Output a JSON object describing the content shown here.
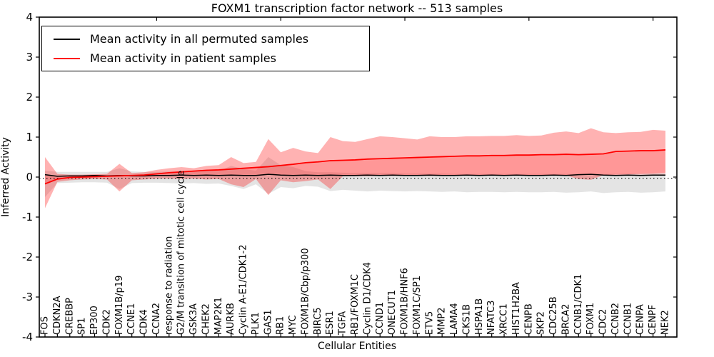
{
  "chart_data": {
    "type": "line",
    "title": "FOXM1 transcription factor network -- 513 samples",
    "xlabel": "Cellular Entities",
    "ylabel": "Inferred Activity",
    "ylim": [
      -4,
      4
    ],
    "yticks": [
      4,
      3,
      2,
      1,
      0,
      -1,
      -2,
      -3,
      -4
    ],
    "grid": false,
    "legend_position": "upper left",
    "colors": {
      "patient_line": "#ff0000",
      "permuted_line": "#000000",
      "patient_band": "rgba(255,0,0,0.30)",
      "permuted_band": "rgba(130,130,130,0.22)",
      "diff_fill": "rgba(255,0,0,0.15)",
      "baseline": "#000000",
      "frame": "#000000"
    },
    "categories": [
      "FOS",
      "CDKN2A",
      "CREBBP",
      "SP1",
      "EP300",
      "CDK2",
      "FOXM1B/p19",
      "CCNE1",
      "CDK4",
      "CCNA2",
      "response to radiation",
      "G2/M transition of mitotic cell cycle",
      "GSK3A",
      "CHEK2",
      "MAP2K1",
      "AURKB",
      "Cyclin A-E1/CDK1-2",
      "PLK1",
      "GAS1",
      "RB1",
      "MYC",
      "FOXM1B/Cbp/p300",
      "BIRC5",
      "ESR1",
      "TGFA",
      "RB1/FOXM1C",
      "Cyclin D1/CDK4",
      "CCND1",
      "ONECUT1",
      "FOXM1B/HNF6",
      "FOXM1C/SP1",
      "ETV5",
      "MMP2",
      "LAMA4",
      "CKS1B",
      "HSPA1B",
      "NFATC3",
      "XRCC1",
      "HIST1H2BA",
      "CENPB",
      "SKP2",
      "CDC25B",
      "BRCA2",
      "CCNB1/CDK1",
      "FOXM1",
      "CDC2",
      "CCNB2",
      "CCNB1",
      "CENPA",
      "CENPF",
      "NEK2"
    ],
    "series": [
      {
        "name": "Mean activity in all permuted samples",
        "color": "#000000",
        "values": [
          0.06,
          0.02,
          0.03,
          0.03,
          0.04,
          0.03,
          0.04,
          0.03,
          0.03,
          0.04,
          0.04,
          0.05,
          0.04,
          0.05,
          0.04,
          0.05,
          0.04,
          0.04,
          0.07,
          0.05,
          0.04,
          0.05,
          0.04,
          0.05,
          0.04,
          0.04,
          0.05,
          0.04,
          0.05,
          0.04,
          0.04,
          0.05,
          0.04,
          0.04,
          0.05,
          0.04,
          0.05,
          0.04,
          0.05,
          0.04,
          0.04,
          0.05,
          0.04,
          0.06,
          0.07,
          0.05,
          0.04,
          0.05,
          0.04,
          0.05,
          0.05
        ]
      },
      {
        "name": "Mean activity in patient samples",
        "color": "#ff0000",
        "values": [
          -0.17,
          -0.05,
          -0.01,
          0.0,
          0.01,
          0.02,
          0.03,
          0.04,
          0.05,
          0.08,
          0.11,
          0.13,
          0.15,
          0.17,
          0.18,
          0.2,
          0.22,
          0.24,
          0.26,
          0.29,
          0.32,
          0.36,
          0.38,
          0.41,
          0.42,
          0.43,
          0.45,
          0.46,
          0.47,
          0.48,
          0.49,
          0.5,
          0.51,
          0.52,
          0.53,
          0.53,
          0.54,
          0.54,
          0.55,
          0.55,
          0.56,
          0.56,
          0.57,
          0.56,
          0.57,
          0.58,
          0.64,
          0.65,
          0.66,
          0.66,
          0.68
        ]
      }
    ],
    "bands": [
      {
        "name": "permuted-band",
        "upper": [
          0.16,
          0.13,
          0.13,
          0.13,
          0.13,
          0.13,
          0.22,
          0.14,
          0.13,
          0.13,
          0.14,
          0.14,
          0.14,
          0.16,
          0.15,
          0.28,
          0.2,
          0.16,
          0.5,
          0.3,
          0.25,
          0.15,
          0.12,
          0.12,
          0.11,
          0.1,
          0.1,
          0.1,
          0.1,
          0.09,
          0.09,
          0.09,
          0.09,
          0.08,
          0.08,
          0.08,
          0.08,
          0.08,
          0.08,
          0.08,
          0.08,
          0.08,
          0.08,
          0.08,
          0.08,
          0.08,
          0.08,
          0.09,
          0.09,
          0.1,
          0.1
        ],
        "lower": [
          -0.5,
          -0.15,
          -0.14,
          -0.13,
          -0.13,
          -0.14,
          -0.3,
          -0.15,
          -0.14,
          -0.14,
          -0.15,
          -0.16,
          -0.15,
          -0.17,
          -0.16,
          -0.22,
          -0.3,
          -0.18,
          -0.42,
          -0.25,
          -0.28,
          -0.22,
          -0.24,
          -0.35,
          -0.32,
          -0.34,
          -0.36,
          -0.34,
          -0.35,
          -0.36,
          -0.35,
          -0.36,
          -0.37,
          -0.36,
          -0.38,
          -0.37,
          -0.37,
          -0.38,
          -0.37,
          -0.38,
          -0.38,
          -0.37,
          -0.39,
          -0.38,
          -0.36,
          -0.4,
          -0.38,
          -0.37,
          -0.39,
          -0.38,
          -0.36
        ]
      },
      {
        "name": "patient-band",
        "upper": [
          0.5,
          0.08,
          0.06,
          0.06,
          0.07,
          0.08,
          0.33,
          0.1,
          0.12,
          0.18,
          0.22,
          0.25,
          0.22,
          0.28,
          0.3,
          0.5,
          0.35,
          0.38,
          0.95,
          0.62,
          0.73,
          0.64,
          0.6,
          1.0,
          0.9,
          0.88,
          0.95,
          1.02,
          1.0,
          0.97,
          0.94,
          1.02,
          1.0,
          1.0,
          1.02,
          1.02,
          1.03,
          1.03,
          1.05,
          1.03,
          1.04,
          1.11,
          1.14,
          1.1,
          1.22,
          1.12,
          1.1,
          1.12,
          1.13,
          1.18,
          1.16
        ],
        "lower": [
          -0.78,
          -0.12,
          -0.08,
          -0.06,
          -0.05,
          -0.06,
          -0.36,
          -0.08,
          -0.06,
          -0.04,
          -0.04,
          -0.05,
          -0.04,
          -0.06,
          -0.05,
          -0.18,
          -0.25,
          -0.05,
          -0.45,
          -0.08,
          -0.13,
          -0.1,
          -0.06,
          -0.3,
          0.02,
          0.02,
          0.02,
          0.03,
          0.03,
          0.03,
          0.03,
          0.03,
          0.03,
          0.03,
          0.04,
          0.04,
          0.04,
          0.04,
          0.04,
          0.04,
          0.04,
          0.04,
          0.04,
          -0.05,
          -0.07,
          0.05,
          0.06,
          0.07,
          0.08,
          0.09,
          0.11
        ]
      }
    ],
    "baseline": {
      "value": -0.03,
      "style": "dotted",
      "color": "#000000"
    },
    "top_tick_indices": [
      9,
      19,
      29,
      39,
      49
    ]
  }
}
